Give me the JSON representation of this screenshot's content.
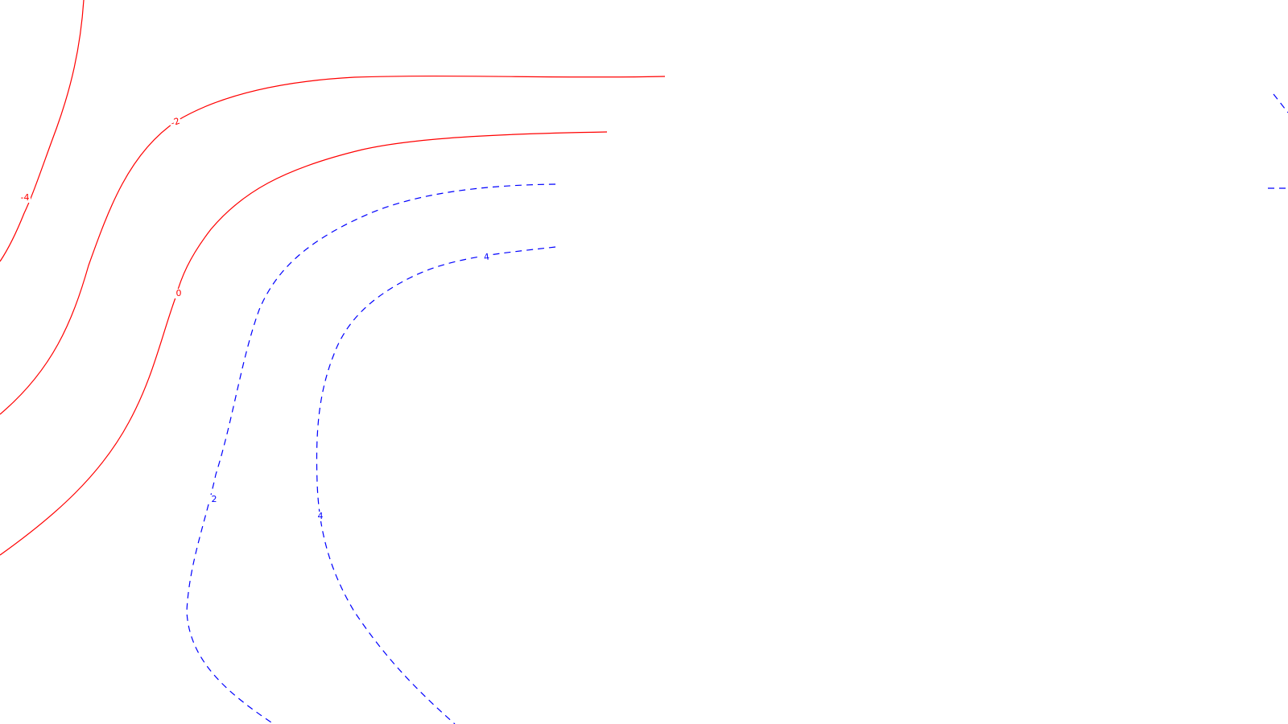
{
  "chart_data": {
    "type": "contour",
    "title": "",
    "xlabel": "",
    "ylabel": "",
    "grid": false,
    "legend": "none",
    "styles": {
      "negative": {
        "color": "#ff0000",
        "dash": "solid"
      },
      "zero": {
        "color": "#ff0000",
        "dash": "solid"
      },
      "positive": {
        "color": "#0000ff",
        "dash": "dashed"
      }
    },
    "levels": [
      {
        "level": -4,
        "label": "-4",
        "sign": "negative"
      },
      {
        "level": -2,
        "label": "-2",
        "sign": "negative"
      },
      {
        "level": 0,
        "label": "0",
        "sign": "zero"
      },
      {
        "level": 2,
        "label": "2",
        "sign": "positive"
      },
      {
        "level": 4,
        "label": "4",
        "sign": "positive"
      }
    ],
    "edge_fragments": [
      {
        "sign": "positive"
      },
      {
        "sign": "positive"
      }
    ]
  }
}
